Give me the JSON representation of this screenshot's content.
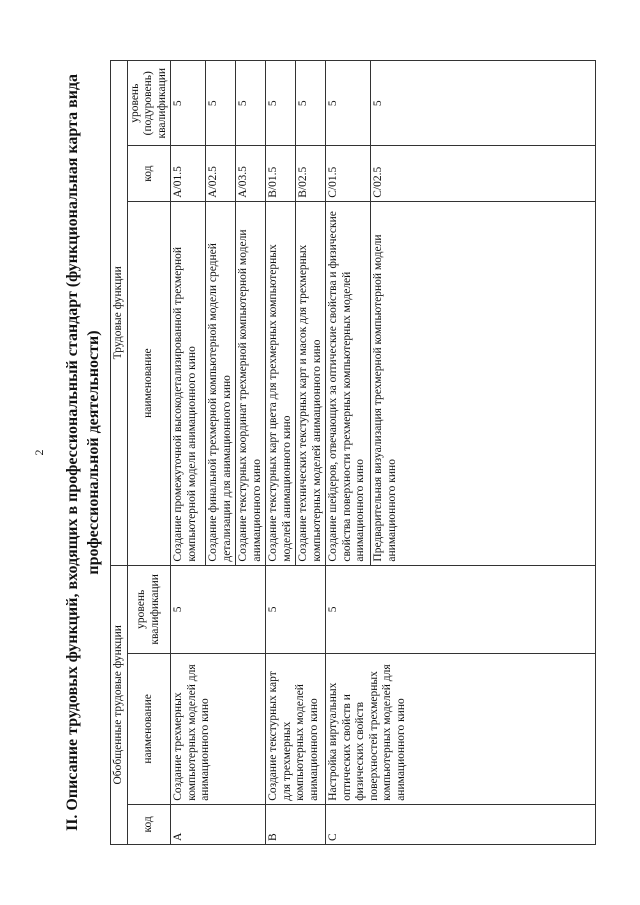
{
  "page_number": "2",
  "title_line1": "II. Описание трудовых функций, входящих в профессиональный стандарт (функциональная карта вида",
  "title_line2": "профессиональной деятельности)",
  "table": {
    "group_header_generalized": "Обобщенные трудовые функции",
    "group_header_labor": "Трудовые функции",
    "col_code": "код",
    "col_name": "наименование",
    "col_level": "уровень квалификации",
    "col_tf_name": "наименование",
    "col_tf_code": "код",
    "col_tf_level": "уровень (подуровень) квалификации",
    "groups": [
      {
        "code": "A",
        "name": "Создание трехмерных компьютерных моделей для анимационного кино",
        "level": "5",
        "functions": [
          {
            "name": "Создание промежуточной высокодетализированной трехмерной компьютерной модели анимационного кино",
            "code": "A/01.5",
            "level": "5"
          },
          {
            "name": "Создание финальной трехмерной компьютерной модели средней детализации для анимационного кино",
            "code": "A/02.5",
            "level": "5"
          },
          {
            "name": "Создание текстурных координат трехмерной компьютерной модели анимационного кино",
            "code": "A/03.5",
            "level": "5"
          }
        ]
      },
      {
        "code": "B",
        "name": "Создание текстурных карт для трехмерных компьютерных моделей анимационного кино",
        "level": "5",
        "functions": [
          {
            "name": "Создание текстурных карт цвета для трехмерных компьютерных моделей анимационного кино",
            "code": "B/01.5",
            "level": "5"
          },
          {
            "name": "Создание технических текстурных карт и масок для трехмерных компьютерных моделей анимационного кино",
            "code": "B/02.5",
            "level": "5"
          }
        ]
      },
      {
        "code": "C",
        "name": "Настройка виртуальных оптических свойств и физических свойств поверхностей трехмерных компьютерных моделей для анимационного кино",
        "level": "5",
        "functions": [
          {
            "name": "Создание шейдеров, отвечающих за оптические свойства и физические свойства поверхности трехмерных компьютерных моделей анимационного кино",
            "code": "C/01.5",
            "level": "5"
          },
          {
            "name": "Предварительная визуализация трехмерной компьютерной модели анимационного кино",
            "code": "C/02.5",
            "level": "5"
          }
        ]
      }
    ]
  }
}
